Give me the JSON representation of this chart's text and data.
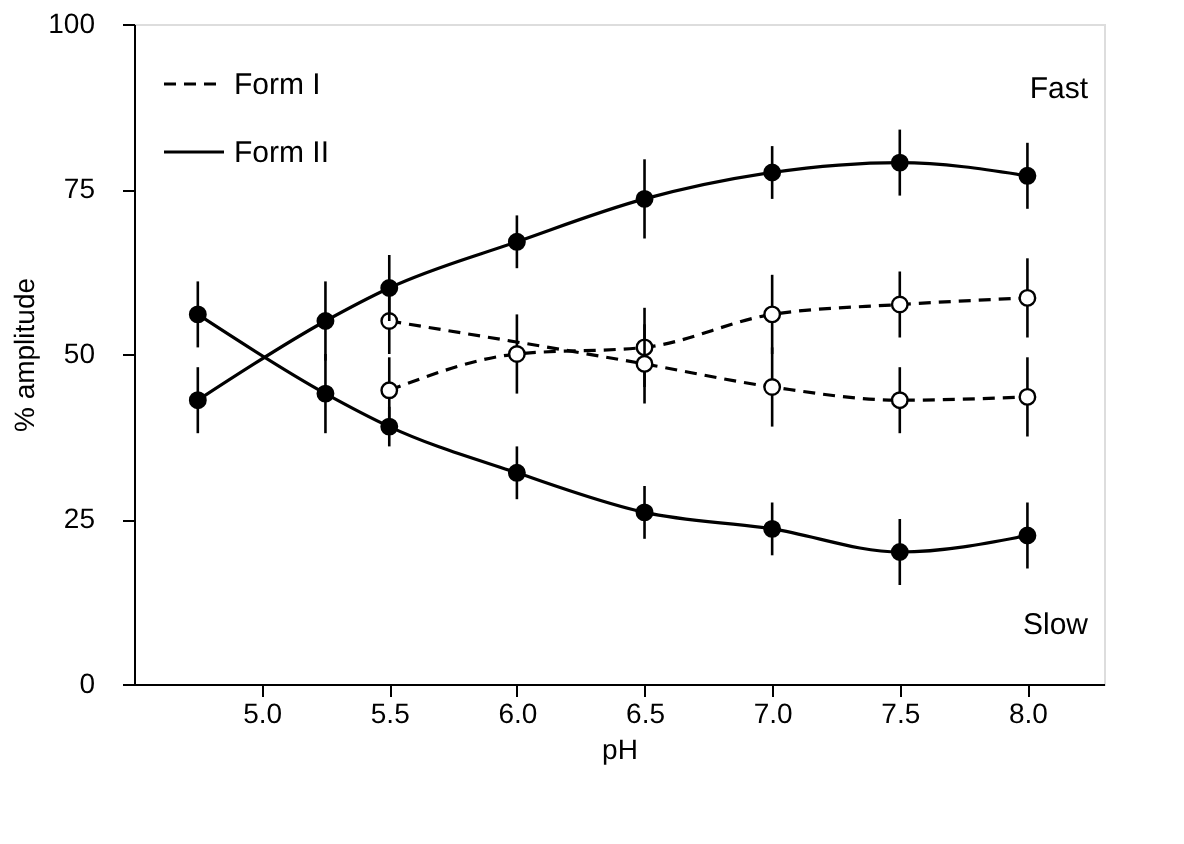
{
  "chart_data": {
    "type": "line",
    "xlabel": "pH",
    "ylabel": "% amplitude",
    "xlim": [
      4.5,
      8.3
    ],
    "ylim": [
      0,
      100
    ],
    "xticks": [
      {
        "value": 5.0,
        "label": "5.0"
      },
      {
        "value": 5.5,
        "label": "5.5"
      },
      {
        "value": 6.0,
        "label": "6.0"
      },
      {
        "value": 6.5,
        "label": "6.5"
      },
      {
        "value": 7.0,
        "label": "7.0"
      },
      {
        "value": 7.5,
        "label": "7.5"
      },
      {
        "value": 8.0,
        "label": "8.0"
      }
    ],
    "yticks": [
      0,
      25,
      50,
      75,
      100
    ],
    "grid": false,
    "legend": "top left",
    "marker": "circle",
    "annotations": [
      "Fast",
      "Slow"
    ],
    "series": [
      {
        "name": "Form I",
        "color": "#000000",
        "line_style": "dashed",
        "x": [
          5.5,
          6.0,
          6.5,
          7.0,
          7.5,
          8.0
        ],
        "values": [
          44.5,
          50,
          51,
          56,
          57.5,
          58.5
        ],
        "errors": [
          5,
          6,
          6,
          6,
          5,
          6
        ]
      },
      {
        "color": "#000000",
        "line_style": "dashed",
        "x": [
          5.5,
          6.5,
          7.0,
          7.5,
          8.0
        ],
        "values": [
          55,
          48.5,
          45,
          43,
          43.5
        ],
        "errors": [
          5,
          6,
          6,
          5,
          6
        ]
      },
      {
        "name": "Form II",
        "color": "#000000",
        "line_style": "solid",
        "x": [
          4.75,
          5.25,
          5.5,
          6.0,
          6.5,
          7.0,
          7.5,
          8.0
        ],
        "values": [
          43,
          55,
          60,
          67,
          73.5,
          77.5,
          79,
          77
        ],
        "errors": [
          5,
          6,
          5,
          4,
          6,
          4,
          5,
          5
        ]
      },
      {
        "color": "#000000",
        "line_style": "solid",
        "x": [
          4.75,
          5.25,
          5.5,
          6.0,
          6.5,
          7.0,
          7.5,
          8.0
        ],
        "values": [
          56,
          44,
          39,
          32,
          26,
          23.5,
          20,
          22.5
        ],
        "errors": [
          5,
          6,
          3,
          4,
          4,
          4,
          5,
          5
        ]
      }
    ]
  }
}
